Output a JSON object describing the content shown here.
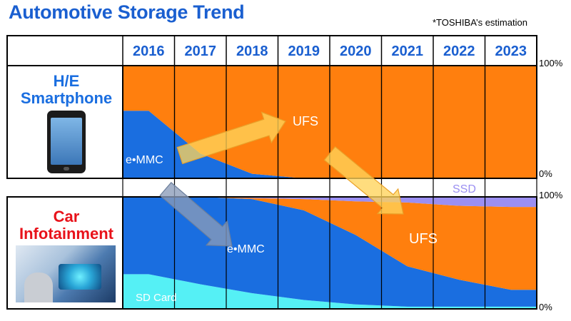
{
  "title": "Automotive Storage Trend",
  "note": "*TOSHIBA’s estimation",
  "colors": {
    "header_blue": "#1a5fd0",
    "ufs": "#ff7f0e",
    "emmc": "#1a6ee0",
    "sd": "#55f0f5",
    "ssd": "#9b8ff2",
    "arrow": "#ffd35a",
    "arrow_gray": "#8a9bb8"
  },
  "rows": {
    "smartphone": {
      "label_line1": "H/E",
      "label_line2": "Smartphone",
      "image": "smartphone-icon"
    },
    "infotainment": {
      "label_line1": "Car",
      "label_line2": "Infotainment",
      "image": "car-dashboard-icon"
    }
  },
  "axis": {
    "top": "100%",
    "bottom": "0%"
  },
  "chart_data": [
    {
      "type": "area",
      "title": "H/E Smartphone",
      "x": [
        "2016",
        "2017",
        "2018",
        "2019",
        "2020",
        "2021",
        "2022",
        "2023"
      ],
      "ylim": [
        0,
        100
      ],
      "series": [
        {
          "name": "e•MMC",
          "values": [
            60,
            22,
            4,
            0,
            0,
            0,
            0,
            0
          ]
        },
        {
          "name": "UFS",
          "values": [
            40,
            78,
            96,
            100,
            100,
            100,
            100,
            100
          ]
        }
      ],
      "annotations": [
        "e•MMC",
        "UFS"
      ]
    },
    {
      "type": "area",
      "title": "Car Infotainment",
      "x": [
        "2016",
        "2017",
        "2018",
        "2019",
        "2020",
        "2021",
        "2022",
        "2023"
      ],
      "ylim": [
        0,
        100
      ],
      "series": [
        {
          "name": "SD Card",
          "values": [
            31,
            22,
            14,
            8,
            4,
            2,
            2,
            2
          ]
        },
        {
          "name": "e•MMC",
          "values": [
            69,
            78,
            84,
            80,
            62,
            36,
            24,
            15
          ]
        },
        {
          "name": "UFS",
          "values": [
            0,
            0,
            1,
            10,
            30,
            57,
            66,
            74
          ]
        },
        {
          "name": "SSD",
          "values": [
            0,
            0,
            1,
            2,
            4,
            5,
            8,
            9
          ]
        }
      ],
      "annotations": [
        "SD Card",
        "e•MMC",
        "UFS",
        "SSD"
      ]
    }
  ]
}
